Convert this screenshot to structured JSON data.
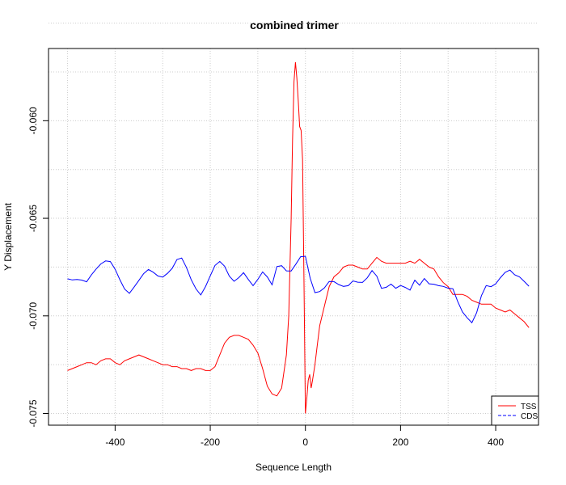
{
  "chart_data": {
    "type": "line",
    "title": "combined trimer",
    "xlabel": "Sequence Length",
    "ylabel": "Y Displacement",
    "xlim": [
      -540,
      490
    ],
    "ylim": [
      -0.0756,
      -0.0563
    ],
    "x_ticks": [
      -400,
      -200,
      0,
      200,
      400
    ],
    "y_ticks": [
      -0.075,
      -0.07,
      -0.065,
      -0.06
    ],
    "x_tick_labels": [
      "-400",
      "-200",
      "0",
      "200",
      "400"
    ],
    "y_tick_labels": [
      "-0.075",
      "-0.070",
      "-0.065",
      "-0.060"
    ],
    "grid": true,
    "legend_position": "bottom-right",
    "series": [
      {
        "name": "TSS",
        "color": "#ff0000",
        "dash": "solid",
        "x": [
          -500,
          -490,
          -480,
          -470,
          -460,
          -450,
          -440,
          -430,
          -420,
          -410,
          -400,
          -390,
          -380,
          -370,
          -360,
          -350,
          -340,
          -330,
          -320,
          -310,
          -300,
          -290,
          -280,
          -270,
          -260,
          -250,
          -240,
          -230,
          -220,
          -210,
          -200,
          -190,
          -180,
          -170,
          -160,
          -150,
          -140,
          -130,
          -120,
          -110,
          -100,
          -90,
          -80,
          -70,
          -60,
          -50,
          -40,
          -35,
          -30,
          -27,
          -24,
          -21,
          -18,
          -15,
          -12,
          -9,
          -6,
          -3,
          0,
          3,
          6,
          9,
          12,
          15,
          20,
          25,
          30,
          40,
          50,
          60,
          70,
          80,
          90,
          100,
          110,
          120,
          130,
          140,
          150,
          160,
          170,
          180,
          190,
          200,
          210,
          220,
          230,
          240,
          250,
          260,
          270,
          280,
          290,
          300,
          310,
          320,
          330,
          340,
          350,
          360,
          370,
          380,
          390,
          400,
          410,
          420,
          430,
          440,
          450,
          460,
          470
        ],
        "y": [
          -0.0728,
          -0.0727,
          -0.0726,
          -0.0725,
          -0.0724,
          -0.0724,
          -0.0725,
          -0.0723,
          -0.0722,
          -0.0722,
          -0.0724,
          -0.0725,
          -0.0723,
          -0.0722,
          -0.0721,
          -0.072,
          -0.0721,
          -0.0722,
          -0.0723,
          -0.0724,
          -0.0725,
          -0.0725,
          -0.0726,
          -0.0726,
          -0.0727,
          -0.0727,
          -0.0728,
          -0.0727,
          -0.0727,
          -0.0728,
          -0.0728,
          -0.0726,
          -0.072,
          -0.0714,
          -0.0711,
          -0.071,
          -0.071,
          -0.0711,
          -0.0712,
          -0.0715,
          -0.0719,
          -0.0727,
          -0.0736,
          -0.074,
          -0.0741,
          -0.0737,
          -0.072,
          -0.07,
          -0.065,
          -0.061,
          -0.058,
          -0.057,
          -0.0578,
          -0.059,
          -0.0603,
          -0.0605,
          -0.062,
          -0.068,
          -0.075,
          -0.0742,
          -0.0733,
          -0.073,
          -0.0737,
          -0.0733,
          -0.0725,
          -0.0715,
          -0.0705,
          -0.0695,
          -0.0685,
          -0.068,
          -0.0678,
          -0.0675,
          -0.0674,
          -0.0674,
          -0.0675,
          -0.0676,
          -0.0676,
          -0.0673,
          -0.067,
          -0.0672,
          -0.0673,
          -0.0673,
          -0.0673,
          -0.0673,
          -0.0673,
          -0.0672,
          -0.0673,
          -0.0671,
          -0.0673,
          -0.0675,
          -0.0676,
          -0.068,
          -0.0683,
          -0.0685,
          -0.0689,
          -0.0689,
          -0.0689,
          -0.069,
          -0.0692,
          -0.0693,
          -0.0694,
          -0.0694,
          -0.0694,
          -0.0696,
          -0.0697,
          -0.0698,
          -0.0697,
          -0.0699,
          -0.0701,
          -0.0703,
          -0.0706
        ]
      },
      {
        "name": "CDS",
        "color": "#0000ff",
        "dash": "dashed",
        "x": [
          -500,
          -490,
          -480,
          -470,
          -460,
          -450,
          -440,
          -430,
          -420,
          -410,
          -400,
          -390,
          -380,
          -370,
          -360,
          -350,
          -340,
          -330,
          -320,
          -310,
          -300,
          -290,
          -280,
          -270,
          -260,
          -250,
          -240,
          -230,
          -220,
          -210,
          -200,
          -190,
          -180,
          -170,
          -160,
          -150,
          -140,
          -130,
          -120,
          -110,
          -100,
          -90,
          -80,
          -70,
          -60,
          -50,
          -40,
          -30,
          -20,
          -10,
          0,
          10,
          20,
          30,
          40,
          50,
          60,
          70,
          80,
          90,
          100,
          110,
          120,
          130,
          140,
          150,
          160,
          170,
          180,
          190,
          200,
          210,
          220,
          230,
          240,
          250,
          260,
          270,
          280,
          290,
          300,
          310,
          320,
          330,
          340,
          350,
          360,
          370,
          380,
          390,
          400,
          410,
          420,
          430,
          440,
          450,
          460,
          470
        ],
        "y": [
          -0.0681,
          -0.0683,
          -0.0684,
          -0.0685,
          -0.0686,
          -0.0682,
          -0.0678,
          -0.0674,
          -0.0671,
          -0.067,
          -0.0673,
          -0.0678,
          -0.0683,
          -0.0686,
          -0.0684,
          -0.0682,
          -0.068,
          -0.0679,
          -0.0681,
          -0.0683,
          -0.0683,
          -0.068,
          -0.0676,
          -0.067,
          -0.0668,
          -0.0672,
          -0.0678,
          -0.0683,
          -0.0687,
          -0.0684,
          -0.068,
          -0.0676,
          -0.0675,
          -0.0678,
          -0.0683,
          -0.0685,
          -0.0682,
          -0.0678,
          -0.068,
          -0.0682,
          -0.0678,
          -0.0674,
          -0.0677,
          -0.0682,
          -0.0674,
          -0.0675,
          -0.0679,
          -0.068,
          -0.0677,
          -0.0673,
          -0.0672,
          -0.0682,
          -0.0688,
          -0.0686,
          -0.0683,
          -0.0679,
          -0.0679,
          -0.0681,
          -0.0683,
          -0.0684,
          -0.0683,
          -0.0685,
          -0.0686,
          -0.0684,
          -0.068,
          -0.0682,
          -0.0687,
          -0.0685,
          -0.0682,
          -0.0683,
          -0.0681,
          -0.0682,
          -0.0684,
          -0.068,
          -0.0684,
          -0.0682,
          -0.0686,
          -0.0687,
          -0.0688,
          -0.0688,
          -0.0688,
          -0.0687,
          -0.0692,
          -0.0696,
          -0.0698,
          -0.07,
          -0.0695,
          -0.0687,
          -0.0683,
          -0.0685,
          -0.0685,
          -0.0683,
          -0.0681,
          -0.068,
          -0.0682,
          -0.0682,
          -0.0683,
          -0.0684
        ]
      }
    ]
  }
}
